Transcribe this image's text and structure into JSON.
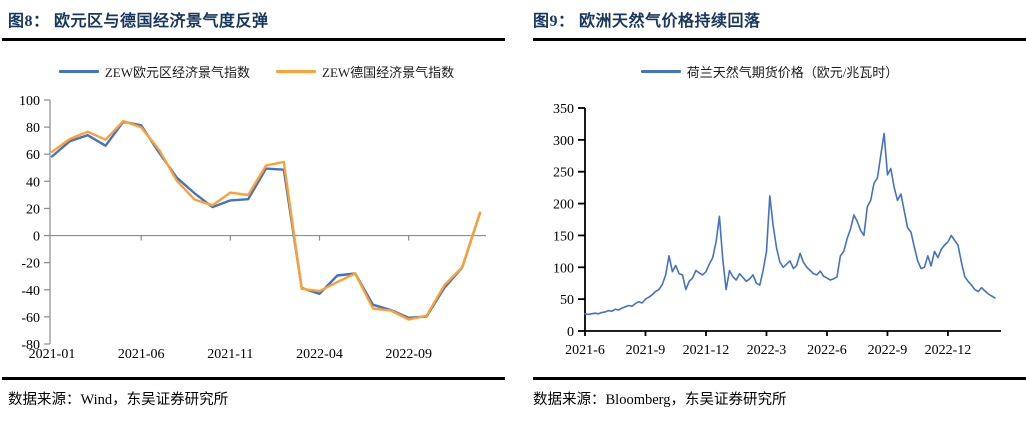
{
  "colors": {
    "title_navy": "#17375E",
    "rule_black": "#000000",
    "axis_gray": "#8C8C8C",
    "axis_black": "#000000",
    "series_blue": "#4472C4",
    "series_orange": "#FFA033"
  },
  "panels": [
    {
      "figure_title": "图8：  欧元区与德国经济景气度反弹",
      "source": "数据来源：Wind，东吴证券研究所"
    },
    {
      "figure_title": "图9：  欧洲天然气价格持续回落",
      "source": "数据来源：Bloomberg，东吴证券研究所"
    }
  ],
  "chart_data": [
    {
      "type": "line",
      "title": "欧元区与德国经济景气度反弹",
      "ylim": [
        -80,
        100
      ],
      "ystep": 20,
      "grid": "zero-line-only",
      "legend_position": "top-center",
      "categories": [
        "2021-01",
        "2021-02",
        "2021-03",
        "2021-04",
        "2021-05",
        "2021-06",
        "2021-07",
        "2021-08",
        "2021-09",
        "2021-10",
        "2021-11",
        "2021-12",
        "2022-01",
        "2022-02",
        "2022-03",
        "2022-04",
        "2022-05",
        "2022-06",
        "2022-07",
        "2022-08",
        "2022-09",
        "2022-10",
        "2022-11",
        "2022-12",
        "2023-01"
      ],
      "x_tick_indices": [
        0,
        5,
        10,
        15,
        20
      ],
      "x_tick_labels": [
        "2021-01",
        "2021-06",
        "2021-11",
        "2022-04",
        "2022-09"
      ],
      "series": [
        {
          "name": "ZEW欧元区经济景气指数",
          "color": "#4472C4",
          "values": [
            58.3,
            69.6,
            74.0,
            66.3,
            84.0,
            81.3,
            61.2,
            42.7,
            31.1,
            21.0,
            25.9,
            26.8,
            49.4,
            48.6,
            -38.7,
            -43.0,
            -29.5,
            -28.0,
            -51.1,
            -54.9,
            -60.7,
            -59.7,
            -38.7,
            -23.6,
            16.7
          ]
        },
        {
          "name": "ZEW德国经济景气指数",
          "color": "#FFA033",
          "values": [
            61.8,
            71.2,
            76.6,
            70.7,
            84.4,
            79.8,
            63.3,
            40.4,
            26.5,
            22.3,
            31.7,
            29.9,
            51.7,
            54.3,
            -39.3,
            -41.0,
            -34.3,
            -28.0,
            -53.8,
            -55.3,
            -61.9,
            -59.2,
            -36.7,
            -23.3,
            16.9
          ]
        }
      ]
    },
    {
      "type": "line",
      "title": "欧洲天然气价格持续回落",
      "ylim": [
        0,
        350
      ],
      "ystep": 50,
      "grid": "none",
      "legend_position": "top-center",
      "x_range": [
        "2021-06",
        "2023-02"
      ],
      "x_tick_indices": [
        0,
        18,
        36,
        54,
        72,
        90,
        108
      ],
      "x_tick_labels": [
        "2021-6",
        "2021-9",
        "2021-12",
        "2022-3",
        "2022-6",
        "2022-9",
        "2022-12"
      ],
      "series": [
        {
          "name": "荷兰天然气期货价格（欧元/兆瓦时）",
          "color": "#4472C4",
          "values": [
            27,
            26,
            27,
            28,
            27,
            29,
            30,
            32,
            31,
            34,
            33,
            36,
            38,
            40,
            39,
            43,
            46,
            44,
            50,
            53,
            57,
            62,
            65,
            73,
            88,
            118,
            93,
            103,
            90,
            88,
            65,
            78,
            83,
            95,
            91,
            88,
            93,
            105,
            115,
            140,
            180,
            112,
            65,
            95,
            85,
            80,
            90,
            84,
            78,
            82,
            88,
            75,
            72,
            95,
            125,
            212,
            165,
            130,
            108,
            100,
            105,
            110,
            98,
            103,
            122,
            108,
            100,
            95,
            90,
            88,
            94,
            86,
            83,
            80,
            82,
            85,
            118,
            125,
            145,
            160,
            182,
            172,
            158,
            150,
            195,
            205,
            232,
            240,
            275,
            310,
            245,
            255,
            225,
            205,
            215,
            188,
            162,
            155,
            132,
            110,
            98,
            100,
            118,
            102,
            125,
            115,
            128,
            135,
            140,
            150,
            142,
            135,
            108,
            85,
            78,
            72,
            65,
            62,
            68,
            63,
            58,
            55,
            52
          ]
        }
      ]
    }
  ]
}
